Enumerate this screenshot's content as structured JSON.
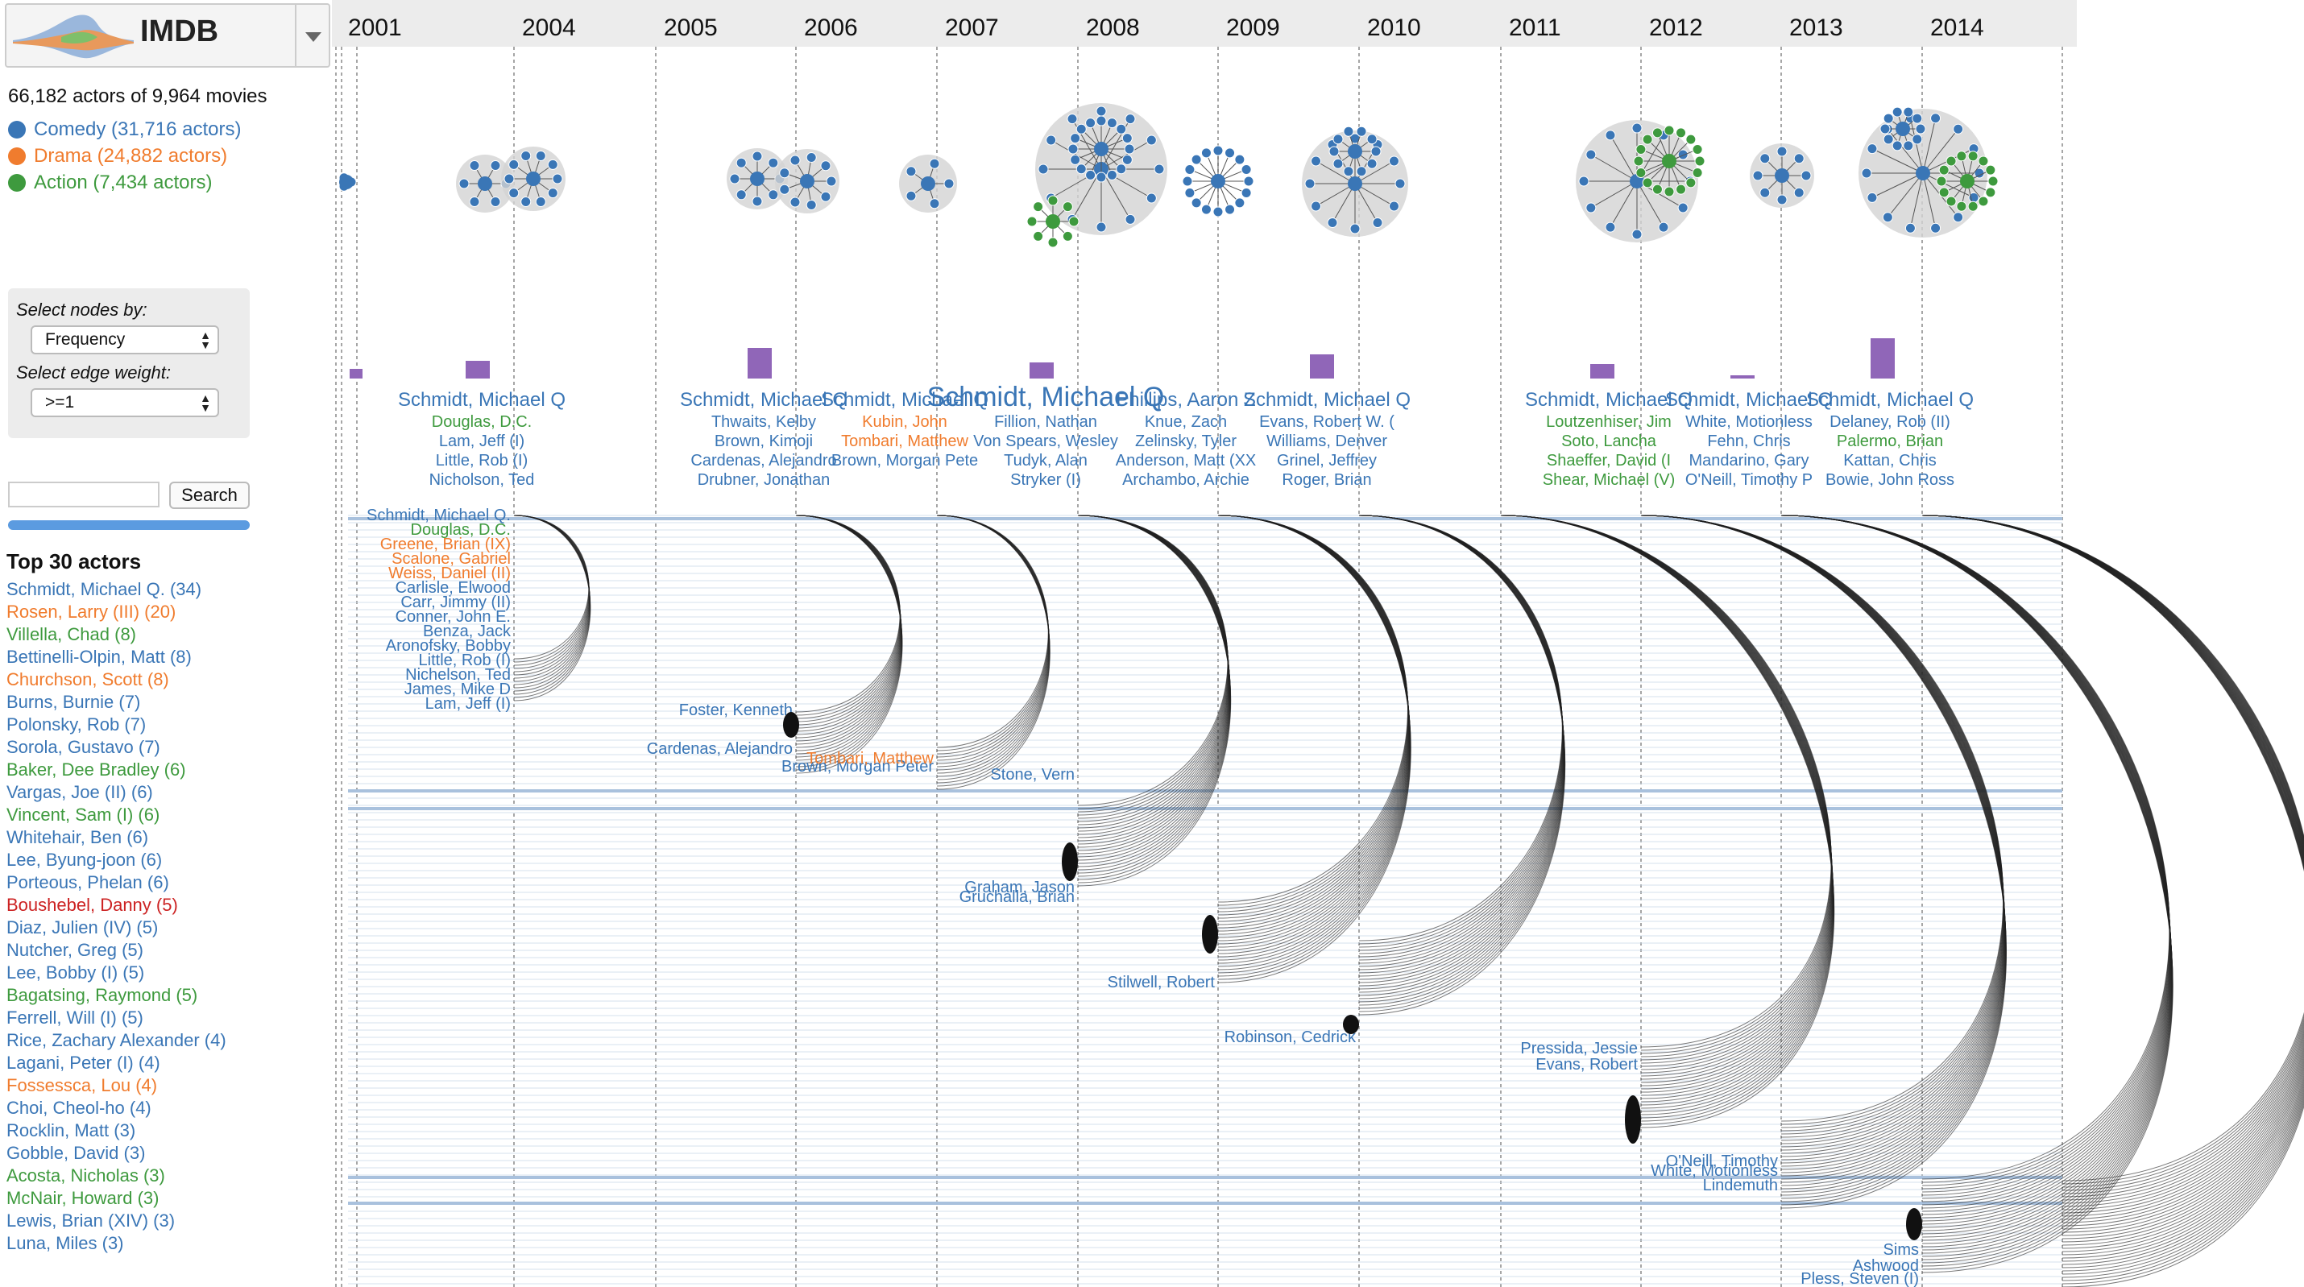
{
  "app": {
    "title": "IMDB"
  },
  "summary": "66,182 actors of 9,964 movies",
  "colors": {
    "comedy": "#3a76b6",
    "drama": "#f07c2e",
    "action": "#3e9a3e",
    "red": "#cc2222",
    "hull": "#d3d3d3",
    "bar": "#9066b8"
  },
  "legend": [
    {
      "label": "Comedy (31,716 actors)",
      "color": "#3a76b6"
    },
    {
      "label": "Drama (24,882 actors)",
      "color": "#f07c2e"
    },
    {
      "label": "Action (7,434 actors)",
      "color": "#3e9a3e"
    }
  ],
  "controls": {
    "nodes_label": "Select nodes by:",
    "nodes_value": "Frequency",
    "edge_label": "Select edge weight:",
    "edge_value": ">=1"
  },
  "search": {
    "value": "",
    "button": "Search"
  },
  "top_actors": {
    "title": "Top 30 actors",
    "items": [
      {
        "label": "Schmidt, Michael Q. (34)",
        "color": "#3a76b6"
      },
      {
        "label": "Rosen, Larry (III) (20)",
        "color": "#f07c2e"
      },
      {
        "label": "Villella, Chad (8)",
        "color": "#3e9a3e"
      },
      {
        "label": "Bettinelli-Olpin, Matt (8)",
        "color": "#3a76b6"
      },
      {
        "label": "Churchson, Scott (8)",
        "color": "#f07c2e"
      },
      {
        "label": "Burns, Burnie (7)",
        "color": "#3a76b6"
      },
      {
        "label": "Polonsky, Rob (7)",
        "color": "#3a76b6"
      },
      {
        "label": "Sorola, Gustavo (7)",
        "color": "#3a76b6"
      },
      {
        "label": "Baker, Dee Bradley (6)",
        "color": "#3e9a3e"
      },
      {
        "label": "Vargas, Joe (II) (6)",
        "color": "#3a76b6"
      },
      {
        "label": "Vincent, Sam (I) (6)",
        "color": "#3e9a3e"
      },
      {
        "label": "Whitehair, Ben (6)",
        "color": "#3a76b6"
      },
      {
        "label": "Lee, Byung-joon (6)",
        "color": "#3a76b6"
      },
      {
        "label": "Porteous, Phelan (6)",
        "color": "#3a76b6"
      },
      {
        "label": "Boushebel, Danny (5)",
        "color": "#cc2222"
      },
      {
        "label": "Diaz, Julien (IV) (5)",
        "color": "#3a76b6"
      },
      {
        "label": "Nutcher, Greg (5)",
        "color": "#3a76b6"
      },
      {
        "label": "Lee, Bobby (I) (5)",
        "color": "#3a76b6"
      },
      {
        "label": "Bagatsing, Raymond (5)",
        "color": "#3e9a3e"
      },
      {
        "label": "Ferrell, Will (I) (5)",
        "color": "#3a76b6"
      },
      {
        "label": "Rice, Zachary Alexander (4)",
        "color": "#3a76b6"
      },
      {
        "label": "Lagani, Peter (I) (4)",
        "color": "#3a76b6"
      },
      {
        "label": "Fossessca, Lou (4)",
        "color": "#f07c2e"
      },
      {
        "label": "Choi, Cheol-ho (4)",
        "color": "#3a76b6"
      },
      {
        "label": "Rocklin, Matt (3)",
        "color": "#3a76b6"
      },
      {
        "label": "Gobble, David (3)",
        "color": "#3a76b6"
      },
      {
        "label": "Acosta, Nicholas (3)",
        "color": "#3e9a3e"
      },
      {
        "label": "McNair, Howard (3)",
        "color": "#3e9a3e"
      },
      {
        "label": "Lewis, Brian (XIV) (3)",
        "color": "#3a76b6"
      },
      {
        "label": "Luna, Miles (3)",
        "color": "#3a76b6"
      }
    ]
  },
  "years": [
    "2001",
    "2004",
    "2005",
    "2006",
    "2007",
    "2008",
    "2009",
    "2010",
    "2011",
    "2012",
    "2013",
    "2014"
  ],
  "year_columns": [
    {
      "top": "Schmidt, Michael Q",
      "names": [
        {
          "t": "Douglas, D.C.",
          "c": "#3e9a3e"
        },
        {
          "t": "Lam, Jeff (I)",
          "c": "#3a76b6"
        },
        {
          "t": "Little, Rob (I)",
          "c": "#3a76b6"
        },
        {
          "t": "Nicholson, Ted",
          "c": "#3a76b6"
        }
      ]
    },
    {
      "top": "Schmidt, Michael Q",
      "names": [
        {
          "t": "Thwaits, Kelby",
          "c": "#3a76b6"
        },
        {
          "t": "Brown, Kimoji",
          "c": "#3a76b6"
        },
        {
          "t": "Cardenas, Alejandro",
          "c": "#3a76b6"
        },
        {
          "t": "Drubner, Jonathan",
          "c": "#3a76b6"
        }
      ]
    },
    {
      "top": "Schmidt, Michael Q",
      "names": [
        {
          "t": "Kubin, John",
          "c": "#f07c2e"
        },
        {
          "t": "Tombari, Matthew",
          "c": "#f07c2e"
        },
        {
          "t": "Brown, Morgan Pete",
          "c": "#3a76b6"
        }
      ]
    },
    {
      "top": "Schmidt, Michael Q",
      "names": [
        {
          "t": "Fillion, Nathan",
          "c": "#3a76b6"
        },
        {
          "t": "Von Spears, Wesley",
          "c": "#3a76b6"
        },
        {
          "t": "Tudyk, Alan",
          "c": "#3a76b6"
        },
        {
          "t": "Stryker (I)",
          "c": "#3a76b6"
        }
      ]
    },
    {
      "top": "Phillips, Aaron Z",
      "names": [
        {
          "t": "Knue, Zach",
          "c": "#3a76b6"
        },
        {
          "t": "Zelinsky, Tyler",
          "c": "#3a76b6"
        },
        {
          "t": "Anderson, Matt (XX",
          "c": "#3a76b6"
        },
        {
          "t": "Archambo, Archie",
          "c": "#3a76b6"
        }
      ]
    },
    {
      "top": "Schmidt, Michael Q",
      "names": [
        {
          "t": "Evans, Robert W. (",
          "c": "#3a76b6"
        },
        {
          "t": "Williams, Denver",
          "c": "#3a76b6"
        },
        {
          "t": "Grinel, Jeffrey",
          "c": "#3a76b6"
        },
        {
          "t": "Roger, Brian",
          "c": "#3a76b6"
        }
      ]
    },
    {
      "top": "Schmidt, Michael Q",
      "names": [
        {
          "t": "Loutzenhiser, Jim",
          "c": "#3e9a3e"
        },
        {
          "t": "Soto, Lancha",
          "c": "#3e9a3e"
        },
        {
          "t": "Shaeffer, David (I",
          "c": "#3e9a3e"
        },
        {
          "t": "Shear, Michael (V)",
          "c": "#3e9a3e"
        }
      ]
    },
    {
      "top": "Schmidt, Michael Q",
      "names": [
        {
          "t": "White, Motionless",
          "c": "#3a76b6"
        },
        {
          "t": "Fehn, Chris",
          "c": "#3a76b6"
        },
        {
          "t": "Mandarino, Gary",
          "c": "#3a76b6"
        },
        {
          "t": "O'Neill, Timothy P",
          "c": "#3a76b6"
        }
      ]
    },
    {
      "top": "Schmidt, Michael Q",
      "names": [
        {
          "t": "Delaney, Rob (II)",
          "c": "#3a76b6"
        },
        {
          "t": "Palermo, Brian",
          "c": "#3e9a3e"
        },
        {
          "t": "Kattan, Chris",
          "c": "#3a76b6"
        },
        {
          "t": "Bowie, John Ross",
          "c": "#3a76b6"
        }
      ]
    }
  ],
  "arc_labels_2004": [
    {
      "t": "Schmidt, Michael Q.",
      "c": "#3a76b6"
    },
    {
      "t": "Douglas, D.C.",
      "c": "#3e9a3e"
    },
    {
      "t": "Greene, Brian (IX)",
      "c": "#f07c2e"
    },
    {
      "t": "Scalone, Gabriel",
      "c": "#f07c2e"
    },
    {
      "t": "Weiss, Daniel (II)",
      "c": "#f07c2e"
    },
    {
      "t": "Carlisle, Elwood",
      "c": "#3a76b6"
    },
    {
      "t": "Carr, Jimmy (II)",
      "c": "#3a76b6"
    },
    {
      "t": "Conner, John E.",
      "c": "#3a76b6"
    },
    {
      "t": "Benza, Jack",
      "c": "#3a76b6"
    },
    {
      "t": "Aronofsky, Bobby",
      "c": "#3a76b6"
    },
    {
      "t": "Little, Rob (I)",
      "c": "#3a76b6"
    },
    {
      "t": "Nichelson, Ted",
      "c": "#3a76b6"
    },
    {
      "t": "James, Mike D",
      "c": "#3a76b6"
    },
    {
      "t": "Lam, Jeff (I)",
      "c": "#3a76b6"
    }
  ],
  "arc_labels_other": [
    {
      "t": "Foster, Kenneth",
      "c": "#3a76b6"
    },
    {
      "t": "Cardenas, Alejandro",
      "c": "#3a76b6"
    },
    {
      "t": "Brown, Morgan Peter",
      "c": "#3a76b6"
    },
    {
      "t": "Tombari, Matthew",
      "c": "#f07c2e"
    },
    {
      "t": "Stone, Vern",
      "c": "#3a76b6"
    },
    {
      "t": "Graham, Jason",
      "c": "#3a76b6"
    },
    {
      "t": "Gruchalla, Brian",
      "c": "#3a76b6"
    },
    {
      "t": "Stilwell, Robert",
      "c": "#3a76b6"
    },
    {
      "t": "Robinson, Cedrick",
      "c": "#3a76b6"
    },
    {
      "t": "Pressida, Jessie",
      "c": "#3a76b6"
    },
    {
      "t": "Evans, Robert",
      "c": "#3a76b6"
    },
    {
      "t": "O'Neill, Timothy",
      "c": "#3a76b6"
    },
    {
      "t": "White, Motionless",
      "c": "#3a76b6"
    },
    {
      "t": "Lindemuth",
      "c": "#3a76b6"
    },
    {
      "t": "Sims",
      "c": "#3a76b6"
    },
    {
      "t": "Ashwood",
      "c": "#3a76b6"
    },
    {
      "t": "Pless, Steven (I)",
      "c": "#3a76b6"
    }
  ]
}
